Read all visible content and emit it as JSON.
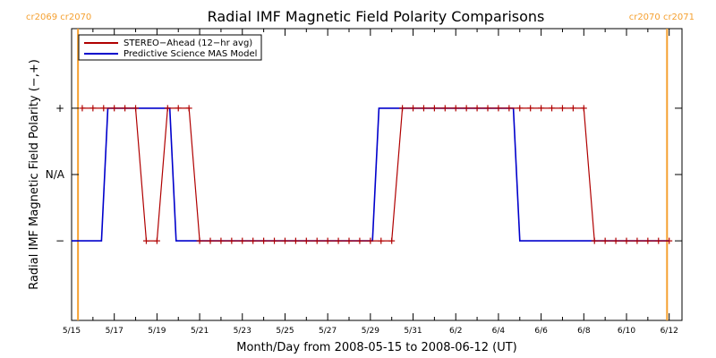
{
  "chart_data": {
    "type": "line",
    "title": "Radial IMF Magnetic Field Polarity Comparisons",
    "xlabel": "Month/Day from 2008-05-15 to 2008-06-12 (UT)",
    "ylabel": "Radial IMF Magnetic Field Polarity (−,+)",
    "x_tick_labels": [
      "5/15",
      "5/17",
      "5/19",
      "5/21",
      "5/23",
      "5/25",
      "5/27",
      "5/29",
      "5/31",
      "6/2",
      "6/4",
      "6/6",
      "6/8",
      "6/10",
      "6/12"
    ],
    "x_tick_days": [
      0,
      2,
      4,
      6,
      8,
      10,
      12,
      14,
      16,
      18,
      20,
      22,
      24,
      26,
      28
    ],
    "xlim_days": [
      0,
      28.6
    ],
    "y_tick_labels": [
      "−",
      "N/A",
      "+"
    ],
    "y_tick_values": [
      -1,
      0,
      1
    ],
    "ylim": [
      -2.2,
      2.2
    ],
    "rotation_markers": [
      {
        "day": 0.3,
        "label": "cr2069 cr2070",
        "color": "#f5a030"
      },
      {
        "day": 27.9,
        "label": "cr2070 cr2071",
        "color": "#f5a030"
      }
    ],
    "series": [
      {
        "name": "STEREO−Ahead (12−hr avg)",
        "color": "#b00000",
        "marker": "plus",
        "x": [
          0.5,
          1.0,
          1.5,
          2.0,
          2.5,
          3.0,
          3.5,
          4.0,
          4.5,
          5.0,
          5.5,
          6.0,
          6.5,
          7.0,
          7.5,
          8.0,
          8.5,
          9.0,
          9.5,
          10.0,
          10.5,
          11.0,
          11.5,
          12.0,
          12.5,
          13.0,
          13.5,
          14.0,
          14.5,
          15.0,
          15.5,
          16.0,
          16.5,
          17.0,
          17.5,
          18.0,
          18.5,
          19.0,
          19.5,
          20.0,
          20.5,
          21.0,
          21.5,
          22.0,
          22.5,
          23.0,
          23.5,
          24.0,
          24.5,
          25.0,
          25.5,
          26.0,
          26.5,
          27.0,
          27.5,
          28.0
        ],
        "y": [
          1,
          1,
          1,
          1,
          1,
          1,
          -1,
          -1,
          1,
          1,
          1,
          -1,
          -1,
          -1,
          -1,
          -1,
          -1,
          -1,
          -1,
          -1,
          -1,
          -1,
          -1,
          -1,
          -1,
          -1,
          -1,
          -1,
          -1,
          -1,
          1,
          1,
          1,
          1,
          1,
          1,
          1,
          1,
          1,
          1,
          1,
          1,
          1,
          1,
          1,
          1,
          1,
          1,
          -1,
          -1,
          -1,
          -1,
          -1,
          -1,
          -1,
          -1
        ]
      },
      {
        "name": "Predictive Science MAS Model",
        "color": "#0000cc",
        "marker": "none",
        "x": [
          0,
          1.4,
          1.7,
          4.6,
          4.9,
          5.3,
          14.1,
          14.4,
          20.7,
          21.0,
          28
        ],
        "y": [
          -1,
          -1,
          1,
          1,
          -1,
          -1,
          -1,
          1,
          1,
          -1,
          -1
        ]
      }
    ],
    "legend_position": "top-left"
  }
}
